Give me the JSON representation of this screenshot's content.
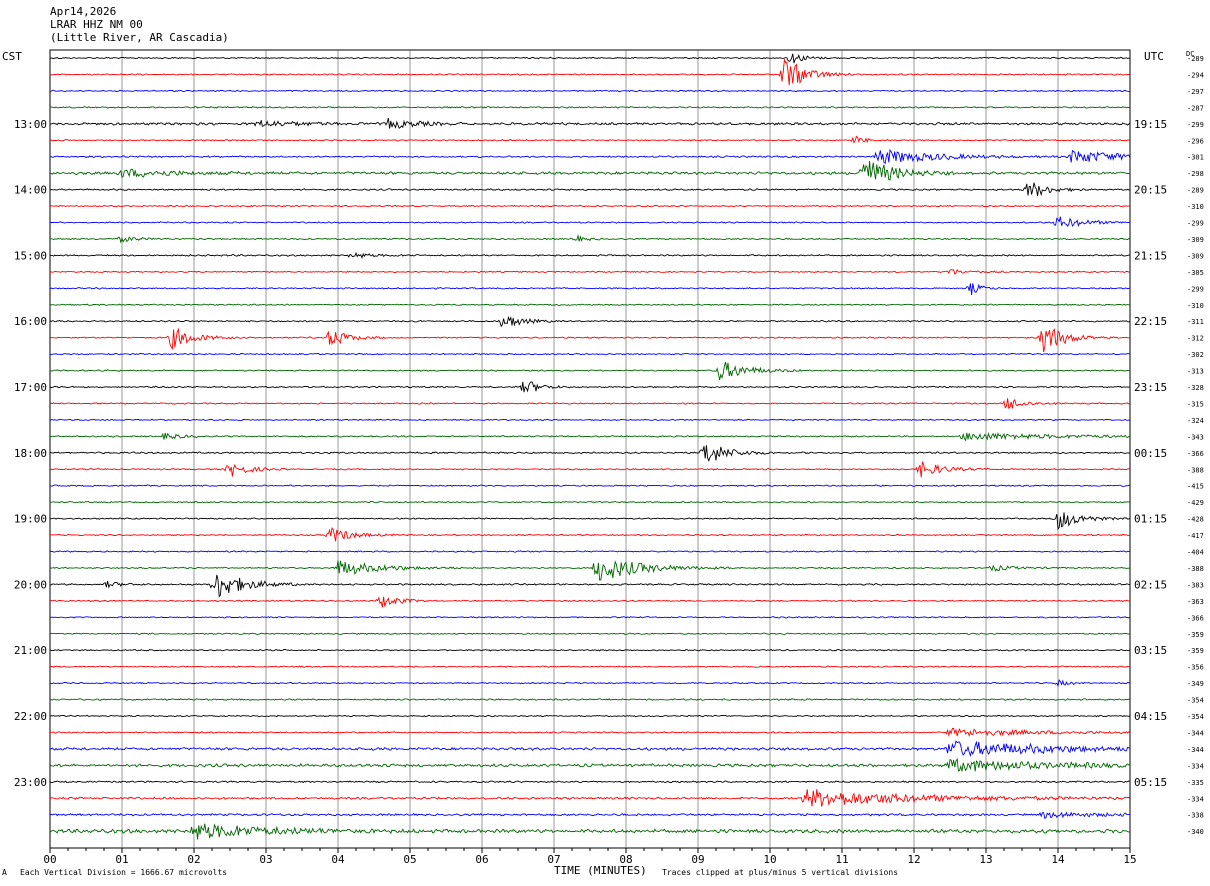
{
  "header": {
    "date": "Apr14,2026",
    "station": "LRAR HHZ NM 00",
    "location": "(Little River, AR Cascadia)"
  },
  "left_tz": "CST",
  "right_tz": "UTC",
  "dc_label": "DC",
  "footer": {
    "scale_note": "Each Vertical Division = 1666.67 microvolts",
    "xlabel": "TIME (MINUTES)",
    "clip_note": "Traces clipped at plus/minus 5 vertical divisions",
    "logo_glyph": "A"
  },
  "chart_data": {
    "type": "line",
    "subtype": "helicorder",
    "xlim": [
      0,
      15
    ],
    "x_ticks": [
      "00",
      "01",
      "02",
      "03",
      "04",
      "05",
      "06",
      "07",
      "08",
      "09",
      "10",
      "11",
      "12",
      "13",
      "14",
      "15"
    ],
    "vertical_gridlines": true,
    "trace_color_cycle": [
      "#000000",
      "#ff0000",
      "#0000ff",
      "#006600"
    ],
    "rows_per_hour": 4,
    "left_hour_labels": [
      "13:00",
      "14:00",
      "15:00",
      "16:00",
      "17:00",
      "18:00",
      "19:00",
      "20:00",
      "21:00",
      "22:00",
      "23:00"
    ],
    "right_hour_labels": [
      "19:15",
      "20:15",
      "21:15",
      "22:15",
      "23:15",
      "00:15",
      "01:15",
      "02:15",
      "03:15",
      "04:15",
      "05:15"
    ],
    "first_labeled_row": 4,
    "dc_offsets": [
      -289,
      -294,
      -297,
      -287,
      -299,
      -296,
      -301,
      -298,
      -289,
      -310,
      -299,
      -309,
      -309,
      -305,
      -299,
      -310,
      -311,
      -312,
      -302,
      -313,
      -328,
      -315,
      -324,
      -343,
      -366,
      -388,
      -415,
      -429,
      -428,
      -417,
      -404,
      -388,
      -383,
      -363,
      -366,
      -359,
      -359,
      -356,
      -349,
      -354,
      -354,
      -344,
      -344,
      -334,
      -335,
      -334,
      -338,
      -340
    ],
    "base_noise": [
      0.5,
      0.5,
      0.5,
      0.55,
      0.9,
      0.5,
      0.6,
      1.0,
      0.6,
      0.5,
      0.5,
      0.55,
      0.6,
      0.5,
      0.5,
      0.5,
      0.55,
      0.5,
      0.5,
      0.5,
      0.55,
      0.5,
      0.5,
      0.55,
      0.6,
      0.5,
      0.5,
      0.5,
      0.5,
      0.5,
      0.5,
      0.5,
      0.6,
      0.5,
      0.5,
      0.5,
      0.5,
      0.5,
      0.5,
      0.6,
      0.5,
      0.5,
      1.0,
      1.1,
      0.6,
      0.8,
      0.8,
      1.4
    ],
    "events": [
      {
        "row": 0,
        "t": 10.3,
        "amp": 6,
        "dur": 0.4
      },
      {
        "row": 1,
        "t": 10.2,
        "amp": 18,
        "dur": 0.6
      },
      {
        "row": 4,
        "t": 4.7,
        "amp": 5,
        "dur": 0.8
      },
      {
        "row": 4,
        "t": 2.9,
        "amp": 3,
        "dur": 1.2
      },
      {
        "row": 5,
        "t": 11.2,
        "amp": 4,
        "dur": 0.3
      },
      {
        "row": 6,
        "t": 11.5,
        "amp": 8,
        "dur": 1.6
      },
      {
        "row": 6,
        "t": 14.2,
        "amp": 7,
        "dur": 1.5
      },
      {
        "row": 7,
        "t": 11.3,
        "amp": 16,
        "dur": 0.8
      },
      {
        "row": 7,
        "t": 1.0,
        "amp": 4,
        "dur": 1.5
      },
      {
        "row": 8,
        "t": 13.6,
        "amp": 10,
        "dur": 0.5
      },
      {
        "row": 10,
        "t": 14.0,
        "amp": 6,
        "dur": 0.8
      },
      {
        "row": 11,
        "t": 1.0,
        "amp": 3,
        "dur": 0.4
      },
      {
        "row": 11,
        "t": 7.3,
        "amp": 3,
        "dur": 0.3
      },
      {
        "row": 12,
        "t": 4.2,
        "amp": 3,
        "dur": 0.6
      },
      {
        "row": 13,
        "t": 12.5,
        "amp": 3,
        "dur": 0.5
      },
      {
        "row": 14,
        "t": 12.8,
        "amp": 6,
        "dur": 0.3
      },
      {
        "row": 16,
        "t": 6.3,
        "amp": 8,
        "dur": 0.5
      },
      {
        "row": 17,
        "t": 1.7,
        "amp": 11,
        "dur": 0.6
      },
      {
        "row": 17,
        "t": 3.9,
        "amp": 9,
        "dur": 0.5
      },
      {
        "row": 17,
        "t": 13.8,
        "amp": 16,
        "dur": 0.6
      },
      {
        "row": 19,
        "t": 9.3,
        "amp": 10,
        "dur": 0.8
      },
      {
        "row": 20,
        "t": 6.6,
        "amp": 8,
        "dur": 0.4
      },
      {
        "row": 21,
        "t": 13.3,
        "amp": 7,
        "dur": 0.5
      },
      {
        "row": 23,
        "t": 1.6,
        "amp": 3,
        "dur": 0.5
      },
      {
        "row": 23,
        "t": 12.7,
        "amp": 4,
        "dur": 2.5
      },
      {
        "row": 24,
        "t": 9.1,
        "amp": 13,
        "dur": 0.6
      },
      {
        "row": 25,
        "t": 2.5,
        "amp": 8,
        "dur": 0.5
      },
      {
        "row": 25,
        "t": 12.1,
        "amp": 8,
        "dur": 0.6
      },
      {
        "row": 28,
        "t": 14.0,
        "amp": 11,
        "dur": 0.6
      },
      {
        "row": 29,
        "t": 3.9,
        "amp": 8,
        "dur": 0.6
      },
      {
        "row": 31,
        "t": 4.0,
        "amp": 8,
        "dur": 1.2
      },
      {
        "row": 31,
        "t": 7.6,
        "amp": 14,
        "dur": 1.2
      },
      {
        "row": 31,
        "t": 13.1,
        "amp": 3,
        "dur": 0.6
      },
      {
        "row": 32,
        "t": 2.3,
        "amp": 15,
        "dur": 0.8
      },
      {
        "row": 32,
        "t": 0.8,
        "amp": 3,
        "dur": 0.4
      },
      {
        "row": 33,
        "t": 4.6,
        "amp": 7,
        "dur": 0.5
      },
      {
        "row": 38,
        "t": 14.0,
        "amp": 3,
        "dur": 0.3
      },
      {
        "row": 41,
        "t": 12.5,
        "amp": 4,
        "dur": 2.5
      },
      {
        "row": 42,
        "t": 12.5,
        "amp": 8,
        "dur": 3.0
      },
      {
        "row": 43,
        "t": 12.5,
        "amp": 6,
        "dur": 3.0
      },
      {
        "row": 45,
        "t": 10.5,
        "amp": 9,
        "dur": 3.0
      },
      {
        "row": 46,
        "t": 13.8,
        "amp": 3,
        "dur": 1.5
      },
      {
        "row": 47,
        "t": 2.0,
        "amp": 8,
        "dur": 2.0
      }
    ]
  }
}
